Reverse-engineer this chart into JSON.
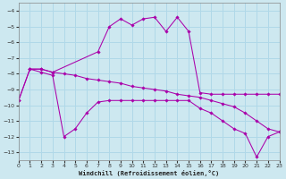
{
  "background_color": "#cde8f0",
  "grid_color": "#b0d8e8",
  "line_color": "#aa00aa",
  "xlabel": "Windchill (Refroidissement éolien,°C)",
  "xlim": [
    0,
    23
  ],
  "ylim": [
    -13.5,
    -3.5
  ],
  "yticks": [
    -13,
    -12,
    -11,
    -10,
    -9,
    -8,
    -7,
    -6,
    -5,
    -4
  ],
  "xticks": [
    0,
    1,
    2,
    3,
    4,
    5,
    6,
    7,
    8,
    9,
    10,
    11,
    12,
    13,
    14,
    15,
    16,
    17,
    18,
    19,
    20,
    21,
    22,
    23
  ],
  "series": [
    {
      "x": [
        1,
        2,
        3,
        7,
        8,
        9,
        10,
        11,
        12,
        13,
        14,
        15,
        16,
        17,
        18,
        19,
        20,
        21,
        22,
        23
      ],
      "y": [
        -7.7,
        -7.7,
        -7.9,
        -6.6,
        -5.0,
        -4.5,
        -4.9,
        -4.5,
        -4.4,
        -5.3,
        -4.4,
        -5.3,
        -9.2,
        -9.3,
        -9.3,
        -9.3,
        -9.3,
        -9.3,
        -9.3,
        -9.3
      ]
    },
    {
      "x": [
        0,
        1,
        2,
        3,
        4,
        5,
        6,
        7,
        8,
        9,
        10,
        11,
        12,
        13,
        14,
        15,
        16,
        17,
        18,
        19,
        20,
        21,
        22,
        23
      ],
      "y": [
        -9.7,
        -7.7,
        -7.9,
        -8.1,
        -12.0,
        -11.5,
        -10.5,
        -9.8,
        -9.7,
        -9.7,
        -9.7,
        -9.7,
        -9.7,
        -9.7,
        -9.7,
        -9.7,
        -10.2,
        -10.5,
        -11.0,
        -11.5,
        -11.8,
        -13.3,
        -12.0,
        -11.7
      ]
    },
    {
      "x": [
        0,
        1,
        2,
        3,
        4,
        5,
        6,
        7,
        8,
        9,
        10,
        11,
        12,
        13,
        14,
        15,
        16,
        17,
        18,
        19,
        20,
        21,
        22,
        23
      ],
      "y": [
        -9.7,
        -7.7,
        -7.7,
        -7.9,
        -8.0,
        -8.1,
        -8.3,
        -8.4,
        -8.5,
        -8.6,
        -8.8,
        -8.9,
        -9.0,
        -9.1,
        -9.3,
        -9.4,
        -9.5,
        -9.7,
        -9.9,
        -10.1,
        -10.5,
        -11.0,
        -11.5,
        -11.7
      ]
    }
  ]
}
